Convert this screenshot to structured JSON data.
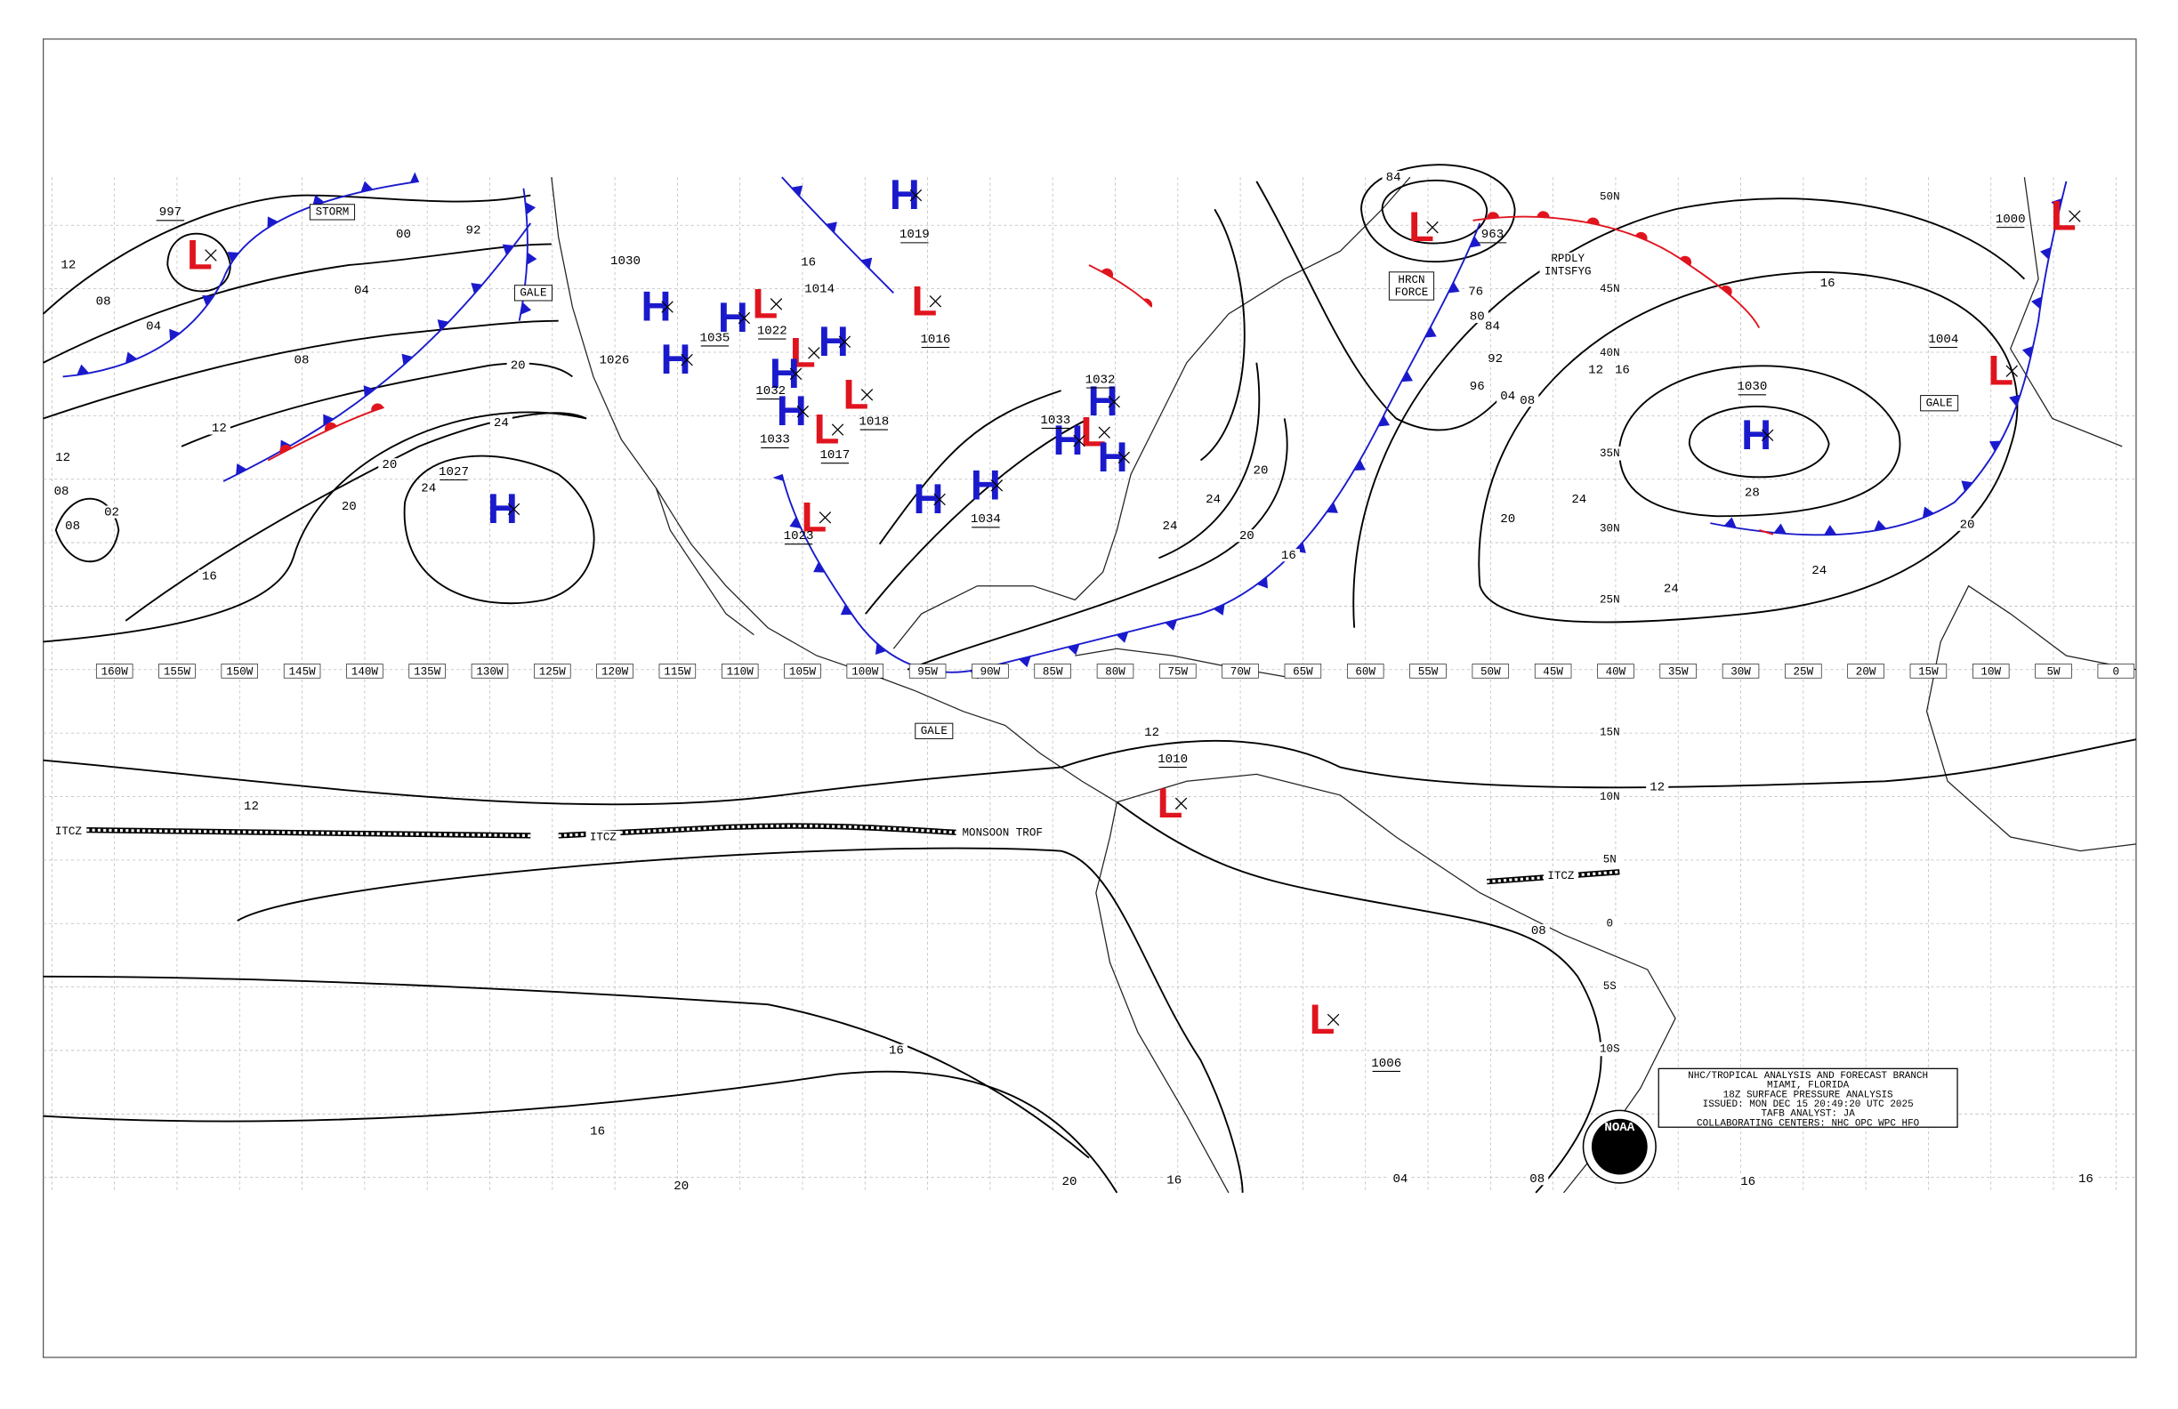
{
  "longitude_labels": [
    "160W",
    "155W",
    "150W",
    "145W",
    "140W",
    "135W",
    "130W",
    "125W",
    "120W",
    "115W",
    "110W",
    "105W",
    "100W",
    "95W",
    "90W",
    "85W",
    "80W",
    "75W",
    "70W",
    "65W",
    "60W",
    "55W",
    "50W",
    "45W",
    "40W",
    "35W",
    "30W",
    "25W",
    "20W",
    "15W",
    "10W",
    "5W",
    "0"
  ],
  "latitude_labels": [
    "50N",
    "45N",
    "40N",
    "35N",
    "30N",
    "25N",
    "15N",
    "10N",
    "5N",
    "0",
    "5S",
    "10S"
  ],
  "high_color": "#1a1acc",
  "low_color": "#e0141e",
  "pressure_centers": [
    {
      "symbol": "L",
      "pressure": "997"
    },
    {
      "symbol": "H",
      "pressure": "1027"
    },
    {
      "symbol": "H"
    },
    {
      "symbol": "H",
      "pressure": "1035"
    },
    {
      "symbol": "H"
    },
    {
      "symbol": "L",
      "pressure": "1022"
    },
    {
      "symbol": "L"
    },
    {
      "symbol": "H"
    },
    {
      "symbol": "H",
      "pressure": "1032"
    },
    {
      "symbol": "H",
      "pressure": "1033"
    },
    {
      "symbol": "L",
      "pressure": "1018"
    },
    {
      "symbol": "L",
      "pressure": "1017"
    },
    {
      "symbol": "L",
      "pressure": "1023"
    },
    {
      "symbol": "H",
      "pressure": "1019"
    },
    {
      "symbol": "L",
      "pressure": "1016"
    },
    {
      "symbol": "H"
    },
    {
      "symbol": "H",
      "pressure": "1034"
    },
    {
      "symbol": "H",
      "pressure": "1032"
    },
    {
      "symbol": "L"
    },
    {
      "symbol": "H",
      "pressure": "1033"
    },
    {
      "symbol": "H"
    },
    {
      "symbol": "L",
      "pressure": "963"
    },
    {
      "symbol": "H",
      "pressure": "1030"
    },
    {
      "symbol": "L",
      "pressure": "1000"
    },
    {
      "symbol": "L",
      "pressure": "1004"
    },
    {
      "symbol": "L",
      "pressure": "1010"
    },
    {
      "symbol": "L",
      "pressure": "1006"
    }
  ],
  "isobar_labels": [
    "00",
    "92",
    "04",
    "08",
    "12",
    "20",
    "24",
    "20",
    "20",
    "24",
    "16",
    "12",
    "08",
    "04",
    "12",
    "08",
    "02",
    "08",
    "1026",
    "1030",
    "1014",
    "16",
    "12",
    "12",
    "12",
    "16",
    "16",
    "12",
    "20",
    "24",
    "24",
    "24",
    "28",
    "20",
    "04",
    "08",
    "16",
    "20",
    "24",
    "24",
    "20",
    "76",
    "80",
    "84",
    "92",
    "96",
    "84",
    "16",
    "16",
    "20",
    "20",
    "16",
    "16",
    "16",
    "08",
    "04",
    "08"
  ],
  "annotations": [
    {
      "lines": [
        "STORM"
      ],
      "boxed": true
    },
    {
      "lines": [
        "GALE"
      ],
      "boxed": true
    },
    {
      "lines": [
        "GALE"
      ],
      "boxed": true
    },
    {
      "lines": [
        "GALE"
      ],
      "boxed": true
    },
    {
      "lines": [
        "HRCN",
        "FORCE"
      ],
      "boxed": true
    },
    {
      "lines": [
        "RPDLY",
        "INTSFYG"
      ],
      "boxed": false
    },
    {
      "lines": [
        "ITCZ"
      ],
      "boxed": false
    },
    {
      "lines": [
        "ITCZ"
      ],
      "boxed": false
    },
    {
      "lines": [
        "MONSOON TROF"
      ],
      "boxed": false
    },
    {
      "lines": [
        "ITCZ"
      ],
      "boxed": false
    }
  ],
  "info_box": [
    "NHC/TROPICAL ANALYSIS AND FORECAST BRANCH",
    "MIAMI, FLORIDA",
    "18Z SURFACE PRESSURE ANALYSIS",
    "ISSUED: MON DEC 15 20:49:20 UTC 2025",
    "TAFB ANALYST: JA",
    "COLLABORATING CENTERS: NHC OPC WPC HFO"
  ],
  "logo_text": "NOAA"
}
